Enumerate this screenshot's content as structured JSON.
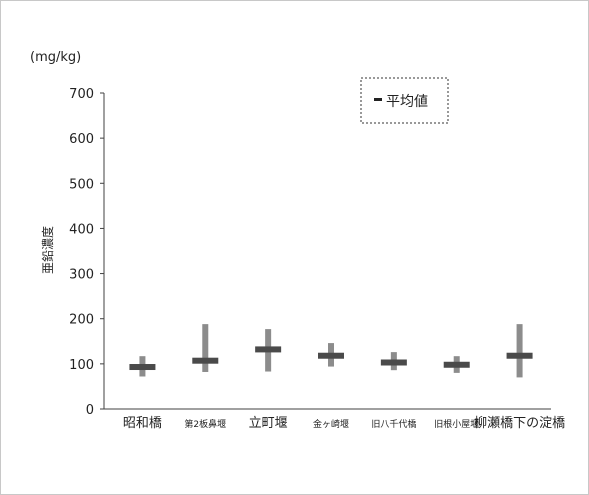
{
  "chart_data": {
    "type": "range",
    "unit_label": "(mg/kg)",
    "ylabel": "亜鉛濃度",
    "ylim": [
      0,
      700
    ],
    "yticks": [
      0,
      100,
      200,
      300,
      400,
      500,
      600,
      700
    ],
    "grid": false,
    "legend_position": "top-right",
    "legend": [
      {
        "label": "平均値",
        "marker": "mean-dash"
      }
    ],
    "categories": [
      "昭和橋",
      "第2板鼻堰",
      "立町堰",
      "金ヶ崎堰",
      "旧八千代橋",
      "旧根小屋堰",
      "柳瀬橋下の淀橋"
    ],
    "series": [
      {
        "name": "平均値",
        "values": [
          93,
          107,
          132,
          118,
          103,
          98,
          118
        ]
      }
    ],
    "min": [
      72,
      82,
      83,
      94,
      86,
      80,
      70
    ],
    "max": [
      117,
      188,
      177,
      146,
      126,
      117,
      188
    ],
    "colors": {
      "range_bar": "#8c8c8c",
      "mean_marker": "#4a4a4a",
      "axis": "#404040",
      "text": "#222222"
    }
  }
}
